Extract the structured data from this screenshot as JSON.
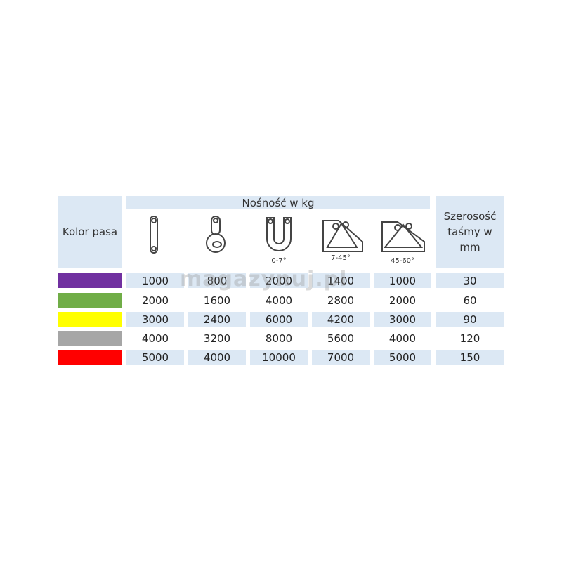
{
  "header": {
    "color_label": "Kolor pasa",
    "capacity_label": "Nośność w kg",
    "width_label_lines": [
      "Szerosość",
      "taśmy w",
      "mm"
    ],
    "configurations": [
      {
        "icon": "straight-lift-icon",
        "angle": ""
      },
      {
        "icon": "choke-hitch-icon",
        "angle": ""
      },
      {
        "icon": "basket-hitch-icon",
        "angle": "0-7°"
      },
      {
        "icon": "basket-angle-icon",
        "angle": "7-45°"
      },
      {
        "icon": "basket-wide-angle-icon",
        "angle": "45-60°"
      }
    ]
  },
  "rows": [
    {
      "color": "#7030a0",
      "values": [
        "1000",
        "800",
        "2000",
        "1400",
        "1000"
      ],
      "width": "30"
    },
    {
      "color": "#70ad47",
      "values": [
        "2000",
        "1600",
        "4000",
        "2800",
        "2000"
      ],
      "width": "60"
    },
    {
      "color": "#ffff00",
      "values": [
        "3000",
        "2400",
        "6000",
        "4200",
        "3000"
      ],
      "width": "90"
    },
    {
      "color": "#a6a6a6",
      "values": [
        "4000",
        "3200",
        "8000",
        "5600",
        "4000"
      ],
      "width": "120"
    },
    {
      "color": "#ff0000",
      "values": [
        "5000",
        "4000",
        "10000",
        "7000",
        "5000"
      ],
      "width": "150"
    }
  ],
  "watermark": "magazynuj.pl"
}
